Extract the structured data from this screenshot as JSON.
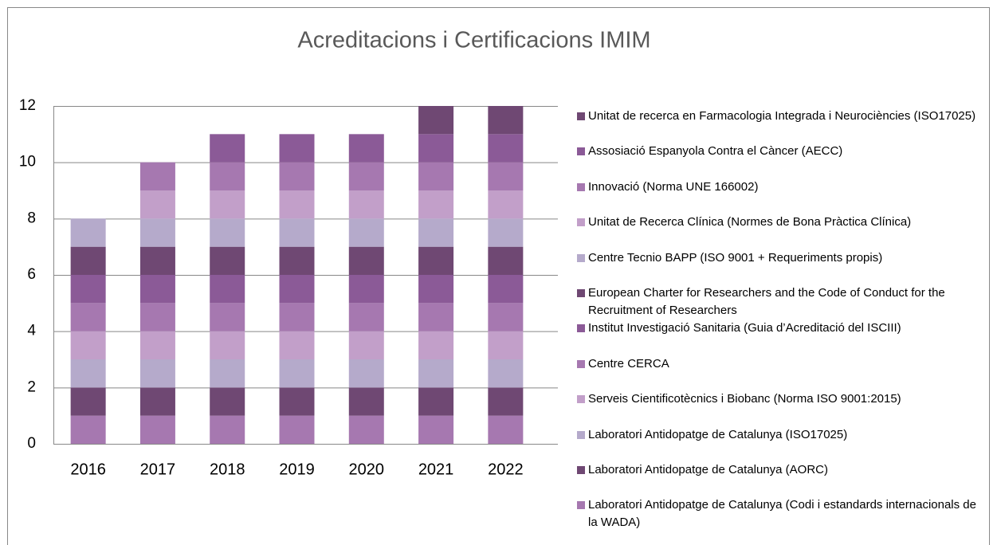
{
  "chart_data": {
    "type": "stacked_bar",
    "title": "Acreditacions i Certificacions IMIM",
    "categories": [
      "2016",
      "2017",
      "2018",
      "2019",
      "2020",
      "2021",
      "2022"
    ],
    "series": [
      {
        "name": "Unitat de recerca en Farmacologia Integrada i Neurociències (ISO17025)",
        "color": "#6f4873",
        "values": [
          0,
          0,
          0,
          0,
          0,
          1,
          1
        ]
      },
      {
        "name": "Assosiació Espanyola Contra el Càncer (AECC)",
        "color": "#8b5a97",
        "values": [
          0,
          0,
          1,
          1,
          1,
          1,
          1
        ]
      },
      {
        "name": "Innovació (Norma UNE 166002)",
        "color": "#a678b0",
        "values": [
          0,
          1,
          1,
          1,
          1,
          1,
          1
        ]
      },
      {
        "name": "Unitat de Recerca Clínica (Normes de Bona Pràctica Clínica)",
        "color": "#c29fc9",
        "values": [
          0,
          1,
          1,
          1,
          1,
          1,
          1
        ]
      },
      {
        "name": "Centre Tecnio BAPP (ISO 9001 + Requeriments propis)",
        "color": "#b5aacb",
        "values": [
          1,
          1,
          1,
          1,
          1,
          1,
          1
        ]
      },
      {
        "name": "European Charter for Researchers and the Code of Conduct for the Recruitment of Researchers",
        "color": "#6f4873",
        "values": [
          1,
          1,
          1,
          1,
          1,
          1,
          1
        ]
      },
      {
        "name": "Institut Investigació Sanitaria (Guia d’Acreditació del ISCIII)",
        "color": "#8b5a97",
        "values": [
          1,
          1,
          1,
          1,
          1,
          1,
          1
        ]
      },
      {
        "name": "Centre CERCA",
        "color": "#a678b0",
        "values": [
          1,
          1,
          1,
          1,
          1,
          1,
          1
        ]
      },
      {
        "name": "Serveis Cientificotècnics i Biobanc (Norma ISO 9001:2015)",
        "color": "#c29fc9",
        "values": [
          1,
          1,
          1,
          1,
          1,
          1,
          1
        ]
      },
      {
        "name": "Laboratori Antidopatge de Catalunya (ISO17025)",
        "color": "#b5aacb",
        "values": [
          1,
          1,
          1,
          1,
          1,
          1,
          1
        ]
      },
      {
        "name": "Laboratori Antidopatge de Catalunya (AORC)",
        "color": "#6f4873",
        "values": [
          1,
          1,
          1,
          1,
          1,
          1,
          1
        ]
      },
      {
        "name": "Laboratori Antidopatge de Catalunya (Codi i estandards internacionals de la WADA)",
        "color": "#a678b0",
        "values": [
          1,
          1,
          1,
          1,
          1,
          1,
          1
        ]
      }
    ],
    "ylim": [
      0,
      12
    ],
    "yticks": [
      0,
      2,
      4,
      6,
      8,
      10,
      12
    ],
    "grid": true,
    "legend": "right"
  }
}
